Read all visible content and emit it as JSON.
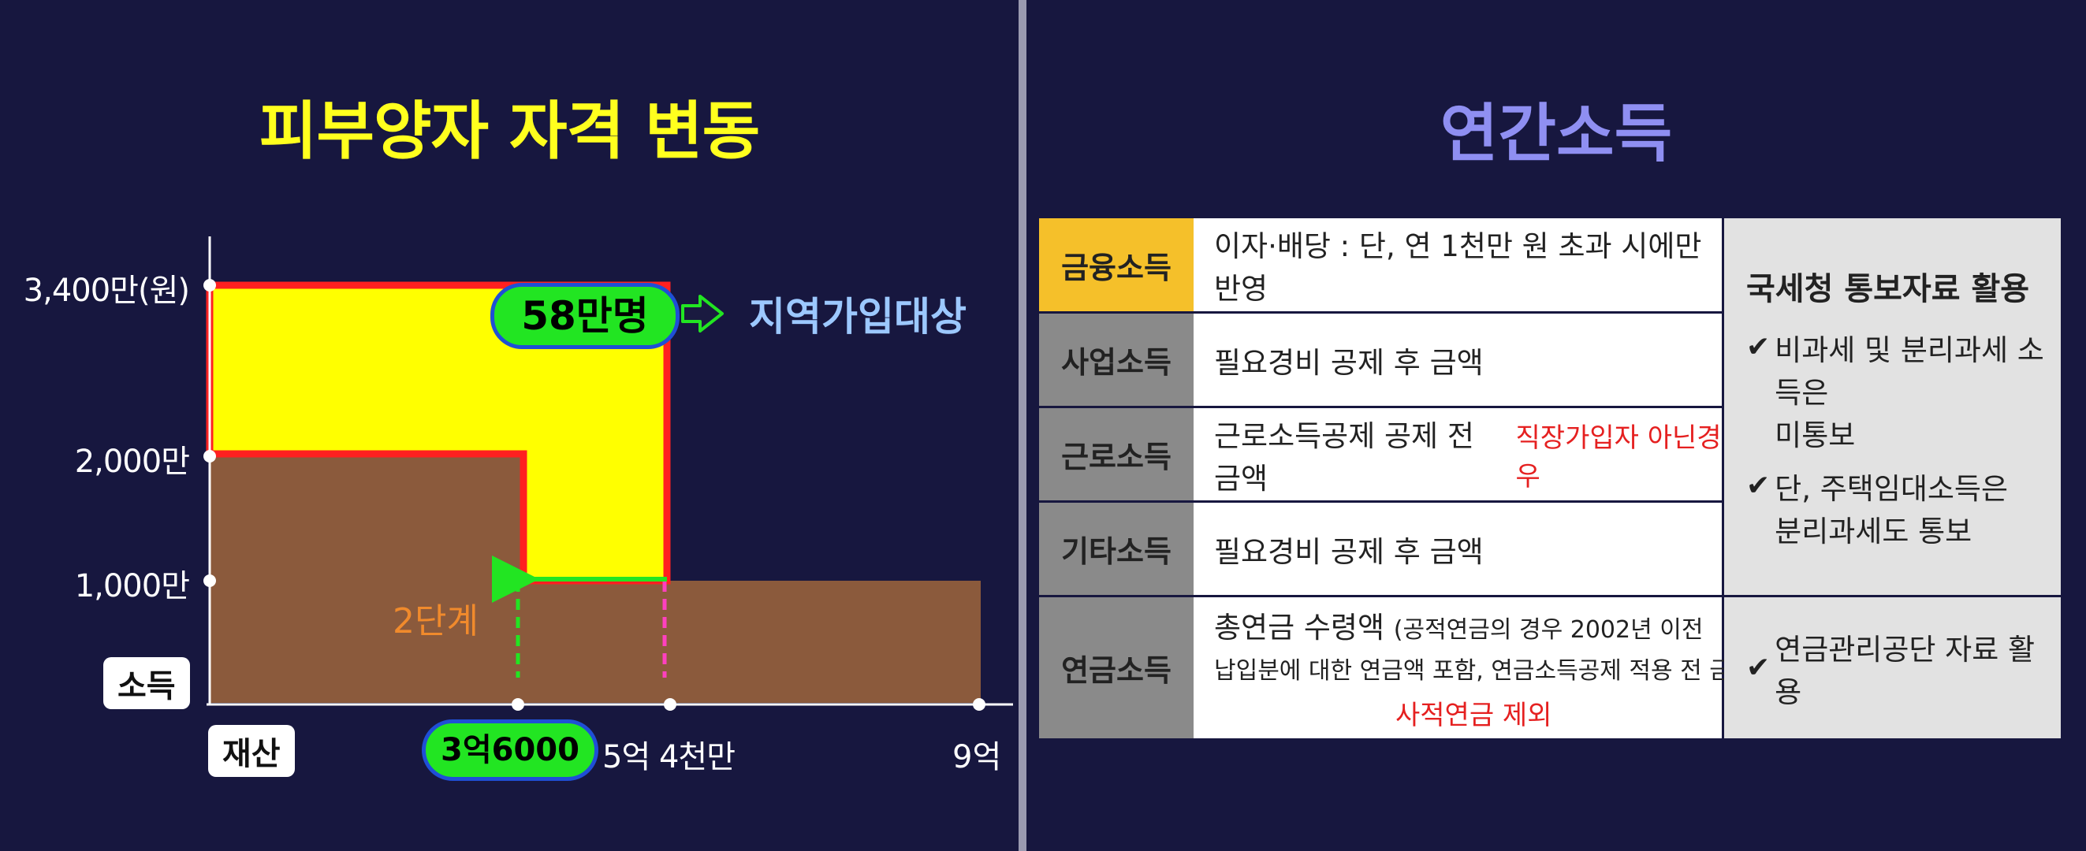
{
  "left": {
    "title": "피부양자 자격 변동",
    "y_ticks": [
      "3,400만(원)",
      "2,000만",
      "1,000만"
    ],
    "y_axis_label": "소득",
    "x_axis_label": "재산",
    "x_ticks": [
      "5억 4천만",
      "9억"
    ],
    "highlight_x": "3억6000",
    "count_badge": "58만명",
    "count_target": "지역가입대상",
    "stage_label": "2단계",
    "colors": {
      "yellow": "#ffff00",
      "brown": "#8b5a3c",
      "red": "#ff2020",
      "green": "#22e522"
    }
  },
  "right": {
    "title": "연간소득",
    "rows": [
      {
        "category": "금융소득",
        "desc": "이자·배당 : 단, 연 1천만 원 초과 시에만 반영"
      },
      {
        "category": "사업소득",
        "desc": "필요경비 공제 후 금액"
      },
      {
        "category": "근로소득",
        "desc": "근로소득공제 공제 전 금액",
        "desc_note": "직장가입자 아닌경우"
      },
      {
        "category": "기타소득",
        "desc": "필요경비 공제 후 금액"
      },
      {
        "category": "연금소득",
        "desc_main": "총연금 수령액",
        "desc_paren_1": "(공적연금의 경우 2002년 이전",
        "desc_paren_2": "납입분에 대한 연금액 포함, 연금소득공제 적용 전 금액)",
        "desc_note": "사적연금 제외"
      }
    ],
    "side_note_top": {
      "heading": "국세청 통보자료 활용",
      "bullets": [
        {
          "line1": "비과세 및 분리과세 소득은",
          "line2": "미통보"
        },
        {
          "line1": "단, 주택임대소득은",
          "line2": "분리과세도 통보"
        }
      ]
    },
    "side_note_bottom": "연금관리공단 자료 활용",
    "check_glyph": "✔",
    "colors": {
      "first_category": "#f5c02a",
      "category": "#8a8a8a",
      "note_bg": "#e2e2e2"
    }
  }
}
